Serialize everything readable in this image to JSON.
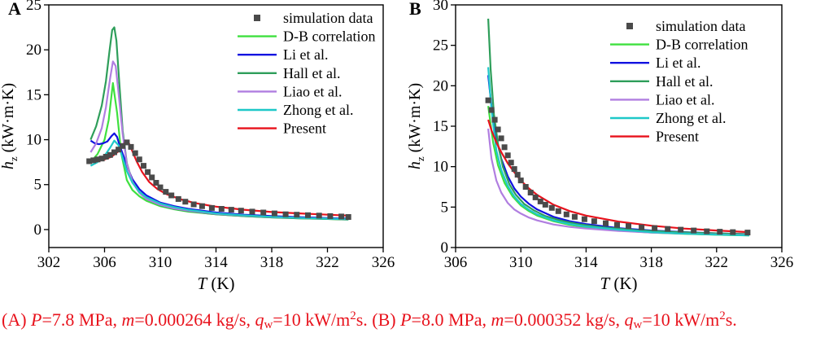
{
  "colors": {
    "sim": "#4a4a4a",
    "db": "#3fe03f",
    "li": "#1111e0",
    "hall": "#2e9e5a",
    "liao": "#b07ee0",
    "zhong": "#1ec8c8",
    "present": "#e8121c",
    "caption": "#e8121c"
  },
  "chart_data": [
    {
      "type": "line",
      "panel": "A",
      "xlabel_var": "T",
      "xlabel_unit": "(K)",
      "ylabel_var": "h",
      "ylabel_sub": "z",
      "ylabel_unit": "(kW·m·K)",
      "xlim": [
        302,
        326
      ],
      "ylim": [
        -2,
        25
      ],
      "xticks": [
        302,
        306,
        310,
        314,
        318,
        322,
        326
      ],
      "yticks": [
        0,
        5,
        10,
        15,
        20,
        25
      ],
      "legend_position": "top-right",
      "series": [
        {
          "name": "simulation data",
          "kind": "scatter",
          "color_key": "sim",
          "x": [
            304.9,
            305.2,
            305.5,
            305.8,
            306.1,
            306.4,
            306.7,
            307.0,
            307.3,
            307.6,
            307.9,
            308.2,
            308.5,
            308.8,
            309.1,
            309.4,
            309.7,
            310.0,
            310.4,
            310.8,
            311.3,
            311.8,
            312.4,
            313.0,
            313.7,
            314.4,
            315.1,
            315.8,
            316.6,
            317.4,
            318.2,
            319.0,
            319.8,
            320.6,
            321.4,
            322.2,
            323.0,
            323.5
          ],
          "y": [
            7.6,
            7.7,
            7.8,
            7.9,
            8.1,
            8.3,
            8.6,
            8.9,
            9.3,
            9.7,
            9.2,
            8.5,
            7.8,
            7.1,
            6.4,
            5.8,
            5.2,
            4.7,
            4.2,
            3.8,
            3.4,
            3.1,
            2.8,
            2.6,
            2.4,
            2.3,
            2.2,
            2.1,
            2.0,
            1.9,
            1.8,
            1.7,
            1.65,
            1.6,
            1.55,
            1.5,
            1.45,
            1.4
          ]
        },
        {
          "name": "D-B correlation",
          "kind": "line",
          "color_key": "db",
          "x": [
            305.0,
            305.5,
            306.0,
            306.3,
            306.6,
            306.9,
            307.2,
            307.6,
            308.0,
            308.5,
            309.0,
            310.0,
            311.0,
            312.0,
            314.0,
            316.0,
            318.0,
            320.0,
            322.0,
            323.5
          ],
          "y": [
            7.5,
            8.4,
            10.0,
            12.2,
            16.3,
            13.0,
            8.5,
            5.5,
            4.4,
            3.7,
            3.2,
            2.6,
            2.25,
            2.0,
            1.7,
            1.5,
            1.35,
            1.25,
            1.18,
            1.12
          ]
        },
        {
          "name": "Li et al.",
          "kind": "line",
          "color_key": "li",
          "x": [
            305.0,
            305.3,
            305.6,
            305.9,
            306.2,
            306.5,
            306.7,
            306.9,
            307.1,
            307.4,
            307.7,
            308.0,
            308.5,
            309.0,
            310.0,
            311.0,
            312.0,
            314.0,
            316.0,
            318.0,
            320.0,
            322.0,
            323.5
          ],
          "y": [
            9.9,
            9.6,
            9.5,
            9.6,
            9.8,
            10.4,
            10.7,
            10.3,
            9.3,
            8.0,
            6.7,
            5.6,
            4.5,
            3.8,
            3.0,
            2.6,
            2.3,
            1.9,
            1.65,
            1.5,
            1.38,
            1.28,
            1.22
          ]
        },
        {
          "name": "Hall et al.",
          "kind": "line",
          "color_key": "hall",
          "x": [
            305.0,
            305.4,
            305.8,
            306.1,
            306.35,
            306.55,
            306.7,
            306.85,
            307.05,
            307.3,
            307.6,
            308.0,
            308.5,
            309.0,
            310.0,
            311.0,
            312.0,
            314.0,
            316.0,
            318.0,
            320.0,
            322.0,
            323.5
          ],
          "y": [
            10.0,
            11.5,
            13.8,
            16.5,
            19.8,
            22.2,
            22.5,
            21.0,
            16.5,
            11.0,
            7.4,
            5.3,
            4.1,
            3.4,
            2.7,
            2.3,
            2.05,
            1.7,
            1.5,
            1.35,
            1.25,
            1.18,
            1.12
          ]
        },
        {
          "name": "Liao et al.",
          "kind": "line",
          "color_key": "liao",
          "x": [
            305.0,
            305.4,
            305.8,
            306.1,
            306.4,
            306.6,
            306.8,
            307.0,
            307.3,
            307.6,
            308.0,
            308.5,
            309.0,
            310.0,
            311.0,
            312.0,
            314.0,
            316.0,
            318.0,
            320.0,
            322.0,
            323.5
          ],
          "y": [
            8.6,
            9.6,
            11.3,
            13.6,
            16.8,
            18.7,
            18.2,
            15.3,
            10.6,
            7.3,
            5.3,
            4.1,
            3.4,
            2.75,
            2.35,
            2.1,
            1.75,
            1.55,
            1.4,
            1.3,
            1.22,
            1.15
          ]
        },
        {
          "name": "Zhong et al.",
          "kind": "line",
          "color_key": "zhong",
          "x": [
            305.0,
            305.5,
            306.0,
            306.4,
            306.7,
            307.0,
            307.3,
            307.6,
            308.0,
            308.5,
            309.0,
            310.0,
            311.0,
            312.0,
            314.0,
            316.0,
            318.0,
            320.0,
            322.0,
            323.5
          ],
          "y": [
            7.1,
            7.5,
            8.2,
            9.1,
            9.9,
            9.4,
            8.0,
            6.5,
            5.2,
            4.2,
            3.6,
            2.9,
            2.5,
            2.2,
            1.8,
            1.58,
            1.42,
            1.3,
            1.22,
            1.15
          ]
        },
        {
          "name": "Present",
          "kind": "line",
          "color_key": "present",
          "x": [
            305.0,
            305.5,
            306.0,
            306.5,
            307.0,
            307.3,
            307.55,
            307.75,
            308.0,
            308.3,
            308.7,
            309.2,
            309.8,
            310.5,
            311.5,
            312.5,
            314.0,
            316.0,
            318.0,
            320.0,
            322.0,
            323.5
          ],
          "y": [
            7.5,
            7.6,
            7.8,
            8.1,
            8.7,
            9.4,
            9.8,
            9.6,
            8.7,
            7.6,
            6.4,
            5.3,
            4.5,
            3.9,
            3.35,
            2.95,
            2.55,
            2.2,
            1.95,
            1.8,
            1.65,
            1.55
          ]
        }
      ]
    },
    {
      "type": "line",
      "panel": "B",
      "xlabel_var": "T",
      "xlabel_unit": "(K)",
      "ylabel_var": "h",
      "ylabel_sub": "z",
      "ylabel_unit": "(kW·m·K)",
      "xlim": [
        306,
        326
      ],
      "ylim": [
        0,
        30
      ],
      "xticks": [
        306,
        310,
        314,
        318,
        322,
        326
      ],
      "yticks": [
        0,
        5,
        10,
        15,
        20,
        25,
        30
      ],
      "legend_position": "top-right",
      "series": [
        {
          "name": "simulation data",
          "kind": "scatter",
          "color_key": "sim",
          "x": [
            308.0,
            308.2,
            308.4,
            308.6,
            308.8,
            309.0,
            309.2,
            309.4,
            309.6,
            309.8,
            310.0,
            310.3,
            310.6,
            310.9,
            311.2,
            311.5,
            311.9,
            312.3,
            312.8,
            313.3,
            313.9,
            314.5,
            315.2,
            315.9,
            316.6,
            317.4,
            318.2,
            319.0,
            319.8,
            320.6,
            321.4,
            322.2,
            323.0,
            323.9
          ],
          "y": [
            18.2,
            17.0,
            15.8,
            14.6,
            13.5,
            12.4,
            11.4,
            10.5,
            9.7,
            9.0,
            8.3,
            7.5,
            6.8,
            6.2,
            5.7,
            5.3,
            4.9,
            4.5,
            4.1,
            3.8,
            3.5,
            3.25,
            3.0,
            2.8,
            2.65,
            2.5,
            2.4,
            2.3,
            2.2,
            2.1,
            2.0,
            1.95,
            1.9,
            1.85
          ]
        },
        {
          "name": "D-B correlation",
          "kind": "line",
          "color_key": "db",
          "x": [
            308.0,
            308.3,
            308.6,
            309.0,
            309.5,
            310.0,
            310.5,
            311.0,
            312.0,
            313.0,
            314.0,
            316.0,
            318.0,
            320.0,
            322.0,
            324.0
          ],
          "y": [
            17.5,
            13.0,
            10.2,
            8.0,
            6.3,
            5.2,
            4.5,
            3.95,
            3.25,
            2.8,
            2.5,
            2.1,
            1.85,
            1.7,
            1.58,
            1.5
          ]
        },
        {
          "name": "Li et al.",
          "kind": "line",
          "color_key": "li",
          "x": [
            308.0,
            308.2,
            308.5,
            308.8,
            309.2,
            309.6,
            310.0,
            310.5,
            311.0,
            312.0,
            313.0,
            314.0,
            316.0,
            318.0,
            320.0,
            322.0,
            324.0
          ],
          "y": [
            21.3,
            17.5,
            13.5,
            11.0,
            8.8,
            7.3,
            6.3,
            5.4,
            4.7,
            3.8,
            3.25,
            2.9,
            2.4,
            2.1,
            1.9,
            1.75,
            1.65
          ]
        },
        {
          "name": "Hall et al.",
          "kind": "line",
          "color_key": "hall",
          "x": [
            308.0,
            308.15,
            308.35,
            308.6,
            308.9,
            309.3,
            309.7,
            310.2,
            310.8,
            311.5,
            312.5,
            313.5,
            315.0,
            317.0,
            319.0,
            321.0,
            324.0
          ],
          "y": [
            28.3,
            22.0,
            16.5,
            12.8,
            10.0,
            7.8,
            6.5,
            5.4,
            4.6,
            3.9,
            3.3,
            2.9,
            2.5,
            2.15,
            1.95,
            1.8,
            1.65
          ]
        },
        {
          "name": "Liao et al.",
          "kind": "line",
          "color_key": "liao",
          "x": [
            308.0,
            308.2,
            308.5,
            308.8,
            309.2,
            309.6,
            310.0,
            310.5,
            311.0,
            312.0,
            313.0,
            314.0,
            316.0,
            318.0,
            320.0,
            322.0,
            324.0
          ],
          "y": [
            14.7,
            11.0,
            8.3,
            6.8,
            5.5,
            4.7,
            4.2,
            3.7,
            3.35,
            2.85,
            2.55,
            2.35,
            2.05,
            1.85,
            1.72,
            1.62,
            1.55
          ]
        },
        {
          "name": "Zhong et al.",
          "kind": "line",
          "color_key": "zhong",
          "x": [
            308.0,
            308.2,
            308.5,
            308.8,
            309.2,
            309.6,
            310.0,
            310.5,
            311.0,
            312.0,
            313.0,
            314.0,
            316.0,
            318.0,
            320.0,
            322.0,
            324.0
          ],
          "y": [
            22.3,
            17.0,
            12.0,
            9.6,
            7.6,
            6.3,
            5.4,
            4.65,
            4.1,
            3.35,
            2.9,
            2.6,
            2.2,
            1.9,
            1.72,
            1.6,
            1.5
          ]
        },
        {
          "name": "Present",
          "kind": "line",
          "color_key": "present",
          "x": [
            308.0,
            308.2,
            308.5,
            308.8,
            309.2,
            309.6,
            310.0,
            310.5,
            311.0,
            312.0,
            313.0,
            314.0,
            316.0,
            318.0,
            320.0,
            322.0,
            324.0
          ],
          "y": [
            15.8,
            14.5,
            13.0,
            11.8,
            10.4,
            9.3,
            8.3,
            7.3,
            6.5,
            5.3,
            4.5,
            3.95,
            3.2,
            2.7,
            2.35,
            2.1,
            1.9
          ]
        }
      ]
    }
  ],
  "caption": {
    "a_label": "(A) ",
    "a_p_var": "P",
    "a_p_val": "=7.8 MPa, ",
    "a_m_var": "m",
    "a_m_val": "=0.000264 kg/s, ",
    "a_q_var": "q",
    "a_q_sub": "w",
    "a_q_val": "=10 kW/m",
    "a_q_exp": "2",
    "a_q_end": "s. ",
    "b_label": "(B) ",
    "b_p_var": "P",
    "b_p_val": "=8.0 MPa, ",
    "b_m_var": "m",
    "b_m_val": "=0.000352 kg/s, ",
    "b_q_var": "q",
    "b_q_sub": "w",
    "b_q_val": "=10 kW/m",
    "b_q_exp": "2",
    "b_q_end": "s."
  }
}
